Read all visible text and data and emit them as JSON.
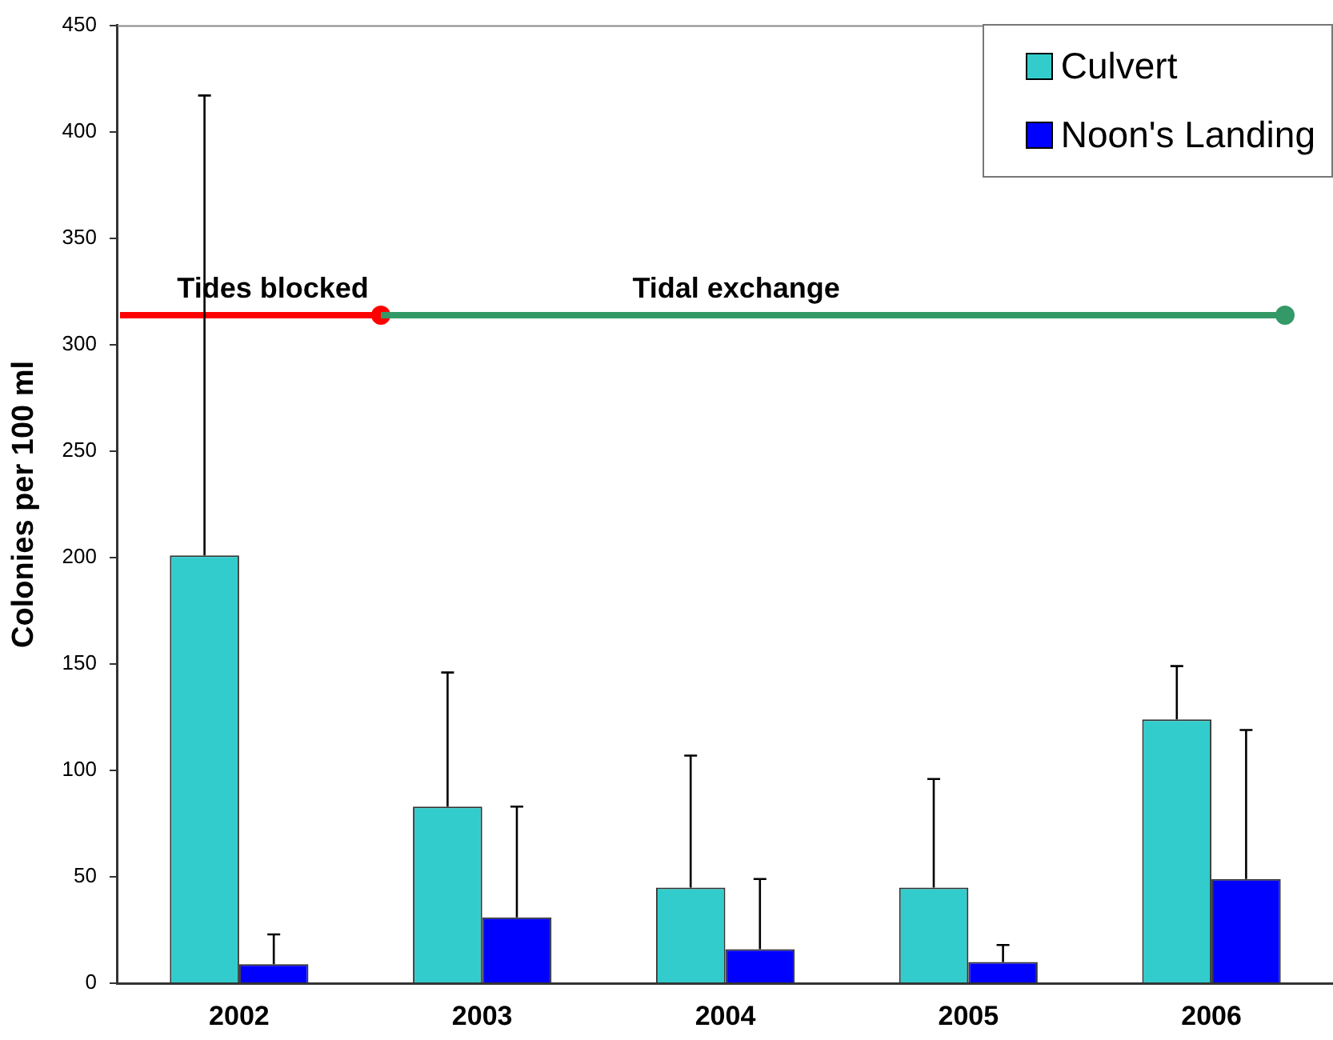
{
  "chart_data": {
    "type": "bar",
    "ylabel": "Colonies per 100 ml",
    "categories": [
      "2002",
      "2003",
      "2004",
      "2005",
      "2006"
    ],
    "series": [
      {
        "name": "Culvert",
        "color": "#33cccc",
        "values": [
          201,
          83,
          45,
          45,
          124
        ],
        "errors": [
          216,
          63,
          62,
          51,
          25
        ]
      },
      {
        "name": "Noon's Landing",
        "color": "#0000ff",
        "values": [
          9,
          31,
          16,
          10,
          49
        ],
        "errors": [
          14,
          52,
          33,
          8,
          70
        ]
      }
    ],
    "ylim": [
      0,
      450
    ],
    "yticks": [
      0,
      50,
      100,
      150,
      200,
      250,
      300,
      350,
      400,
      450
    ],
    "grid": false,
    "legend": "top right",
    "annotations": [
      "Tides blocked",
      "Tidal exchange"
    ]
  }
}
